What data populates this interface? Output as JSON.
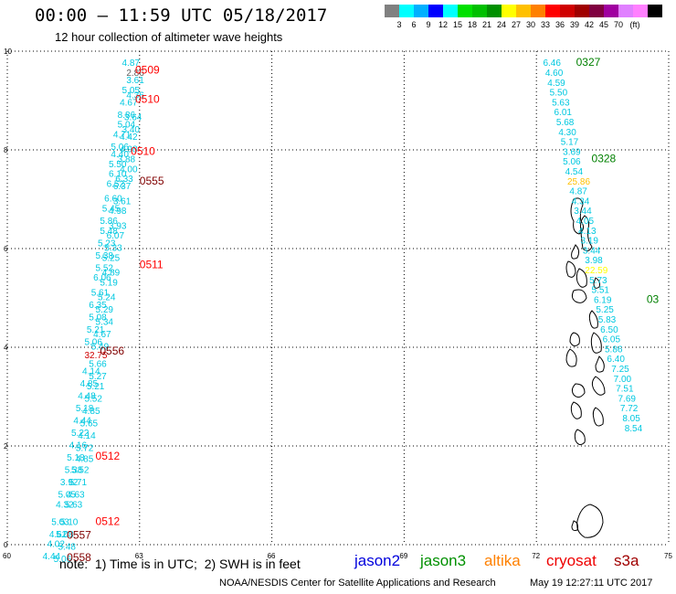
{
  "title": "00:00 – 11:59 UTC 05/18/2017",
  "subtitle": "12 hour collection of altimeter wave heights",
  "colorbar": {
    "unit": "(ft)",
    "colors": [
      "#808080",
      "#00ffff",
      "#00b0ff",
      "#0000ff",
      "#00ffff",
      "#00e000",
      "#00c000",
      "#009000",
      "#ffff00",
      "#ffc000",
      "#ff8000",
      "#ff0000",
      "#d00000",
      "#a00000",
      "#800040",
      "#a000a0",
      "#e080ff",
      "#ff80ff",
      "#000000"
    ],
    "labels": [
      "3",
      "6",
      "9",
      "12",
      "15",
      "18",
      "21",
      "24",
      "27",
      "30",
      "33",
      "36",
      "39",
      "42",
      "45",
      "70"
    ]
  },
  "axes": {
    "x_ticks": [
      "60",
      "63",
      "66",
      "69",
      "72",
      "75"
    ],
    "y_ticks": [
      "10",
      "8",
      "6",
      "4",
      "2",
      "0"
    ],
    "xlim": [
      60,
      75
    ],
    "ylim": [
      0,
      10
    ],
    "grid": "dotted"
  },
  "tracks": {
    "left": {
      "values": [
        {
          "lon": 62.6,
          "lat": 9.7,
          "v": "4.87",
          "c": "#00c8e0"
        },
        {
          "lon": 62.7,
          "lat": 9.5,
          "v": "2.86",
          "c": "#606060"
        },
        {
          "lon": 62.7,
          "lat": 9.35,
          "v": "3.61",
          "c": "#00c8e0"
        },
        {
          "lon": 62.6,
          "lat": 9.15,
          "v": "5.05",
          "c": "#00c8e0"
        },
        {
          "lon": 62.7,
          "lat": 9.05,
          "v": "4.36",
          "c": "#00c8e0"
        },
        {
          "lon": 62.55,
          "lat": 8.9,
          "v": "4.67",
          "c": "#00c8e0"
        },
        {
          "lon": 62.5,
          "lat": 8.65,
          "v": "8.86",
          "c": "#00c8e0"
        },
        {
          "lon": 62.65,
          "lat": 8.6,
          "v": "3.64",
          "c": "#00c8e0"
        },
        {
          "lon": 62.5,
          "lat": 8.45,
          "v": "5.04",
          "c": "#00c8e0"
        },
        {
          "lon": 62.6,
          "lat": 8.35,
          "v": "3.40",
          "c": "#00c8e0"
        },
        {
          "lon": 62.4,
          "lat": 8.25,
          "v": "4.71",
          "c": "#00c8e0"
        },
        {
          "lon": 62.55,
          "lat": 8.2,
          "v": "4.42",
          "c": "#00c8e0"
        },
        {
          "lon": 62.35,
          "lat": 8.0,
          "v": "5.06",
          "c": "#00c8e0"
        },
        {
          "lon": 62.55,
          "lat": 7.95,
          "v": "4.98",
          "c": "#00c8e0"
        },
        {
          "lon": 62.35,
          "lat": 7.85,
          "v": "4.40",
          "c": "#00c8e0"
        },
        {
          "lon": 62.5,
          "lat": 7.75,
          "v": "3.88",
          "c": "#00c8e0"
        },
        {
          "lon": 62.3,
          "lat": 7.65,
          "v": "5.50",
          "c": "#00c8e0"
        },
        {
          "lon": 62.55,
          "lat": 7.55,
          "v": "4.00",
          "c": "#00c8e0"
        },
        {
          "lon": 62.3,
          "lat": 7.45,
          "v": "6.10",
          "c": "#00c8e0"
        },
        {
          "lon": 62.45,
          "lat": 7.35,
          "v": "6.33",
          "c": "#00c8e0"
        },
        {
          "lon": 62.25,
          "lat": 7.25,
          "v": "6.52",
          "c": "#00c8e0"
        },
        {
          "lon": 62.4,
          "lat": 7.2,
          "v": "6.37",
          "c": "#00c8e0"
        },
        {
          "lon": 62.2,
          "lat": 6.95,
          "v": "6.60",
          "c": "#00c8e0"
        },
        {
          "lon": 62.4,
          "lat": 6.9,
          "v": "3.61",
          "c": "#00c8e0"
        },
        {
          "lon": 62.15,
          "lat": 6.75,
          "v": "5.45",
          "c": "#00c8e0"
        },
        {
          "lon": 62.3,
          "lat": 6.7,
          "v": "4.98",
          "c": "#00c8e0"
        },
        {
          "lon": 62.1,
          "lat": 6.5,
          "v": "5.86",
          "c": "#00c8e0"
        },
        {
          "lon": 62.3,
          "lat": 6.4,
          "v": "3.93",
          "c": "#00c8e0"
        },
        {
          "lon": 62.1,
          "lat": 6.3,
          "v": "5.48",
          "c": "#00c8e0"
        },
        {
          "lon": 62.25,
          "lat": 6.2,
          "v": "6.07",
          "c": "#00c8e0"
        },
        {
          "lon": 62.05,
          "lat": 6.05,
          "v": "5.23",
          "c": "#00c8e0"
        },
        {
          "lon": 62.2,
          "lat": 5.95,
          "v": "5.33",
          "c": "#00c8e0"
        },
        {
          "lon": 62.0,
          "lat": 5.8,
          "v": "5.38",
          "c": "#00c8e0"
        },
        {
          "lon": 62.15,
          "lat": 5.75,
          "v": "5.25",
          "c": "#00c8e0"
        },
        {
          "lon": 62.0,
          "lat": 5.55,
          "v": "5.52",
          "c": "#00c8e0"
        },
        {
          "lon": 62.15,
          "lat": 5.45,
          "v": "4.89",
          "c": "#00c8e0"
        },
        {
          "lon": 61.95,
          "lat": 5.35,
          "v": "6.06",
          "c": "#00c8e0"
        },
        {
          "lon": 62.1,
          "lat": 5.25,
          "v": "5.19",
          "c": "#00c8e0"
        },
        {
          "lon": 61.9,
          "lat": 5.05,
          "v": "5.61",
          "c": "#00c8e0"
        },
        {
          "lon": 62.05,
          "lat": 4.95,
          "v": "5.24",
          "c": "#00c8e0"
        },
        {
          "lon": 61.85,
          "lat": 4.8,
          "v": "6.35",
          "c": "#00c8e0"
        },
        {
          "lon": 62.0,
          "lat": 4.7,
          "v": "5.29",
          "c": "#00c8e0"
        },
        {
          "lon": 61.85,
          "lat": 4.55,
          "v": "5.08",
          "c": "#00c8e0"
        },
        {
          "lon": 62.0,
          "lat": 4.45,
          "v": "5.34",
          "c": "#00c8e0"
        },
        {
          "lon": 61.8,
          "lat": 4.3,
          "v": "5.21",
          "c": "#00c8e0"
        },
        {
          "lon": 61.95,
          "lat": 4.2,
          "v": "4.67",
          "c": "#00c8e0"
        },
        {
          "lon": 61.75,
          "lat": 4.05,
          "v": "5.06",
          "c": "#00c8e0"
        },
        {
          "lon": 61.9,
          "lat": 3.95,
          "v": "5.49",
          "c": "#00c8e0"
        },
        {
          "lon": 61.75,
          "lat": 3.78,
          "v": "32.75",
          "c": "#d00000"
        },
        {
          "lon": 61.85,
          "lat": 3.6,
          "v": "5.66",
          "c": "#00c8e0"
        },
        {
          "lon": 61.7,
          "lat": 3.45,
          "v": "4.14",
          "c": "#00c8e0"
        },
        {
          "lon": 61.85,
          "lat": 3.35,
          "v": "5.27",
          "c": "#00c8e0"
        },
        {
          "lon": 61.65,
          "lat": 3.2,
          "v": "4.85",
          "c": "#00c8e0"
        },
        {
          "lon": 61.8,
          "lat": 3.15,
          "v": "5.21",
          "c": "#00c8e0"
        },
        {
          "lon": 61.6,
          "lat": 2.95,
          "v": "4.48",
          "c": "#00c8e0"
        },
        {
          "lon": 61.75,
          "lat": 2.9,
          "v": "5.52",
          "c": "#00c8e0"
        },
        {
          "lon": 61.55,
          "lat": 2.7,
          "v": "5.18",
          "c": "#00c8e0"
        },
        {
          "lon": 61.7,
          "lat": 2.65,
          "v": "4.85",
          "c": "#00c8e0"
        },
        {
          "lon": 61.5,
          "lat": 2.45,
          "v": "4.44",
          "c": "#00c8e0"
        },
        {
          "lon": 61.65,
          "lat": 2.4,
          "v": "5.65",
          "c": "#00c8e0"
        },
        {
          "lon": 61.45,
          "lat": 2.2,
          "v": "5.22",
          "c": "#00c8e0"
        },
        {
          "lon": 61.6,
          "lat": 2.15,
          "v": "4.14",
          "c": "#00c8e0"
        },
        {
          "lon": 61.4,
          "lat": 1.95,
          "v": "4.16",
          "c": "#00c8e0"
        },
        {
          "lon": 61.55,
          "lat": 1.9,
          "v": "5.72",
          "c": "#00c8e0"
        },
        {
          "lon": 61.35,
          "lat": 1.7,
          "v": "5.18",
          "c": "#00c8e0"
        },
        {
          "lon": 61.55,
          "lat": 1.68,
          "v": "4.85",
          "c": "#00c8e0"
        },
        {
          "lon": 61.3,
          "lat": 1.45,
          "v": "5.38",
          "c": "#00c8e0"
        },
        {
          "lon": 61.45,
          "lat": 1.45,
          "v": "5.52",
          "c": "#00c8e0"
        },
        {
          "lon": 61.2,
          "lat": 1.2,
          "v": "3.92",
          "c": "#00c8e0"
        },
        {
          "lon": 61.4,
          "lat": 1.2,
          "v": "5.71",
          "c": "#00c8e0"
        },
        {
          "lon": 61.15,
          "lat": 0.95,
          "v": "5.05",
          "c": "#00c8e0"
        },
        {
          "lon": 61.35,
          "lat": 0.95,
          "v": "4.63",
          "c": "#00c8e0"
        },
        {
          "lon": 61.1,
          "lat": 0.75,
          "v": "4.32",
          "c": "#00c8e0"
        },
        {
          "lon": 61.3,
          "lat": 0.75,
          "v": "5.63",
          "c": "#00c8e0"
        },
        {
          "lon": 61.0,
          "lat": 0.4,
          "v": "5.03",
          "c": "#00c8e0"
        },
        {
          "lon": 61.2,
          "lat": 0.4,
          "v": "5.10",
          "c": "#00c8e0"
        },
        {
          "lon": 60.95,
          "lat": 0.15,
          "v": "4.62",
          "c": "#00c8e0"
        },
        {
          "lon": 61.1,
          "lat": 0.15,
          "v": "5.08",
          "c": "#00c8e0"
        },
        {
          "lon": 60.9,
          "lat": -0.05,
          "v": "4.02",
          "c": "#00c8e0"
        },
        {
          "lon": 61.15,
          "lat": -0.1,
          "v": "5.48",
          "c": "#00c8e0"
        },
        {
          "lon": 60.8,
          "lat": -0.3,
          "v": "4.44",
          "c": "#00c8e0"
        },
        {
          "lon": 61.05,
          "lat": -0.35,
          "v": "5.06",
          "c": "#00c8e0"
        }
      ],
      "labels": [
        {
          "lon": 62.9,
          "lat": 9.55,
          "t": "0509",
          "c": "#ff0000"
        },
        {
          "lon": 62.9,
          "lat": 8.95,
          "t": "0510",
          "c": "#ff0000"
        },
        {
          "lon": 62.8,
          "lat": 7.9,
          "t": "0510",
          "c": "#ff0000"
        },
        {
          "lon": 63.0,
          "lat": 7.3,
          "t": "0555",
          "c": "#800000"
        },
        {
          "lon": 63.0,
          "lat": 5.6,
          "t": "0511",
          "c": "#ff0000"
        },
        {
          "lon": 62.1,
          "lat": 3.85,
          "t": "0556",
          "c": "#800000"
        },
        {
          "lon": 62.0,
          "lat": 1.72,
          "t": "0512",
          "c": "#ff0000"
        },
        {
          "lon": 62.0,
          "lat": 0.4,
          "t": "0512",
          "c": "#ff0000"
        },
        {
          "lon": 61.35,
          "lat": 0.12,
          "t": "0557",
          "c": "#800000"
        },
        {
          "lon": 61.35,
          "lat": -0.33,
          "t": "0558",
          "c": "#800000"
        }
      ]
    },
    "right": {
      "values": [
        {
          "lon": 72.15,
          "lat": 9.7,
          "v": "6.46",
          "c": "#00c8e0"
        },
        {
          "lon": 72.2,
          "lat": 9.5,
          "v": "4.60",
          "c": "#00c8e0"
        },
        {
          "lon": 72.25,
          "lat": 9.3,
          "v": "4.59",
          "c": "#00c8e0"
        },
        {
          "lon": 72.3,
          "lat": 9.1,
          "v": "5.50",
          "c": "#00c8e0"
        },
        {
          "lon": 72.35,
          "lat": 8.9,
          "v": "5.63",
          "c": "#00c8e0"
        },
        {
          "lon": 72.4,
          "lat": 8.7,
          "v": "6.01",
          "c": "#00c8e0"
        },
        {
          "lon": 72.45,
          "lat": 8.5,
          "v": "5.68",
          "c": "#00c8e0"
        },
        {
          "lon": 72.5,
          "lat": 8.3,
          "v": "4.30",
          "c": "#00c8e0"
        },
        {
          "lon": 72.55,
          "lat": 8.1,
          "v": "5.17",
          "c": "#00c8e0"
        },
        {
          "lon": 72.6,
          "lat": 7.9,
          "v": "3.69",
          "c": "#00c8e0"
        },
        {
          "lon": 72.6,
          "lat": 7.7,
          "v": "5.06",
          "c": "#00c8e0"
        },
        {
          "lon": 72.65,
          "lat": 7.5,
          "v": "4.54",
          "c": "#00c8e0"
        },
        {
          "lon": 72.7,
          "lat": 7.3,
          "v": "25.86",
          "c": "#ffc000"
        },
        {
          "lon": 72.75,
          "lat": 7.1,
          "v": "4.87",
          "c": "#00c8e0"
        },
        {
          "lon": 72.8,
          "lat": 6.9,
          "v": "4.34",
          "c": "#00c8e0"
        },
        {
          "lon": 72.85,
          "lat": 6.7,
          "v": "3.44",
          "c": "#00c8e0"
        },
        {
          "lon": 72.9,
          "lat": 6.5,
          "v": "4.05",
          "c": "#00c8e0"
        },
        {
          "lon": 72.95,
          "lat": 6.3,
          "v": "4.13",
          "c": "#00c8e0"
        },
        {
          "lon": 73.0,
          "lat": 6.1,
          "v": "3.19",
          "c": "#00c8e0"
        },
        {
          "lon": 73.05,
          "lat": 5.9,
          "v": "3.44",
          "c": "#00c8e0"
        },
        {
          "lon": 73.1,
          "lat": 5.7,
          "v": "3.98",
          "c": "#00c8e0"
        },
        {
          "lon": 73.1,
          "lat": 5.5,
          "v": "22.59",
          "c": "#ffff00"
        },
        {
          "lon": 73.2,
          "lat": 5.3,
          "v": "5.73",
          "c": "#00c8e0"
        },
        {
          "lon": 73.25,
          "lat": 5.1,
          "v": "5.51",
          "c": "#00c8e0"
        },
        {
          "lon": 73.3,
          "lat": 4.9,
          "v": "6.19",
          "c": "#00c8e0"
        },
        {
          "lon": 73.35,
          "lat": 4.7,
          "v": "5.25",
          "c": "#00c8e0"
        },
        {
          "lon": 73.4,
          "lat": 4.5,
          "v": "5.83",
          "c": "#00c8e0"
        },
        {
          "lon": 73.45,
          "lat": 4.3,
          "v": "6.50",
          "c": "#00c8e0"
        },
        {
          "lon": 73.5,
          "lat": 4.1,
          "v": "6.05",
          "c": "#00c8e0"
        },
        {
          "lon": 73.55,
          "lat": 3.9,
          "v": "5.86",
          "c": "#00c8e0"
        },
        {
          "lon": 73.6,
          "lat": 3.7,
          "v": "6.40",
          "c": "#00c8e0"
        },
        {
          "lon": 73.7,
          "lat": 3.5,
          "v": "7.25",
          "c": "#00c8e0"
        },
        {
          "lon": 73.75,
          "lat": 3.3,
          "v": "7.00",
          "c": "#00c8e0"
        },
        {
          "lon": 73.8,
          "lat": 3.1,
          "v": "7.51",
          "c": "#00c8e0"
        },
        {
          "lon": 73.85,
          "lat": 2.9,
          "v": "7.69",
          "c": "#00c8e0"
        },
        {
          "lon": 73.9,
          "lat": 2.7,
          "v": "7.72",
          "c": "#00c8e0"
        },
        {
          "lon": 73.95,
          "lat": 2.5,
          "v": "8.05",
          "c": "#00c8e0"
        },
        {
          "lon": 74.0,
          "lat": 2.3,
          "v": "8.54",
          "c": "#00c8e0"
        }
      ],
      "labels": [
        {
          "lon": 72.9,
          "lat": 9.7,
          "t": "0327",
          "c": "#008000"
        },
        {
          "lon": 73.25,
          "lat": 7.75,
          "t": "0328",
          "c": "#008000"
        },
        {
          "lon": 74.5,
          "lat": 4.9,
          "t": "03",
          "c": "#008000"
        }
      ]
    }
  },
  "note": "note:  1) Time is in UTC;  2) SWH is in feet",
  "satellites": [
    {
      "name": "jason2",
      "color": "#0000dd"
    },
    {
      "name": "jason3",
      "color": "#009000"
    },
    {
      "name": "altika",
      "color": "#ff8000"
    },
    {
      "name": "cryosat",
      "color": "#ee0000"
    },
    {
      "name": "s3a",
      "color": "#a00000"
    }
  ],
  "credit": "NOAA/NESDIS Center for Satellite Applications and Research",
  "timestamp": "May 19 12:27:11 UTC 2017"
}
